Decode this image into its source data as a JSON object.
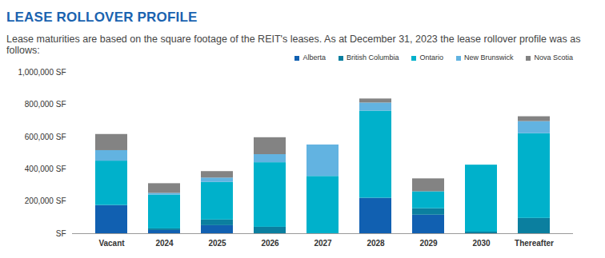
{
  "chart_data": {
    "type": "bar",
    "title": "LEASE ROLLOVER PROFILE",
    "subtitle": "Lease maturities are based on the square footage of the REIT's leases. As at December 31, 2023 the lease rollover profile was as follows:",
    "categories": [
      "Vacant",
      "2024",
      "2025",
      "2026",
      "2027",
      "2028",
      "2029",
      "2030",
      "Thereafter"
    ],
    "series": [
      {
        "name": "Alberta",
        "color": "#1160b1",
        "values": [
          175000,
          20000,
          50000,
          0,
          0,
          220000,
          115000,
          0,
          0
        ]
      },
      {
        "name": "British Columbia",
        "color": "#0b7f9f",
        "values": [
          0,
          10000,
          35000,
          40000,
          0,
          0,
          40000,
          10000,
          95000
        ]
      },
      {
        "name": "Ontario",
        "color": "#00b1cb",
        "values": [
          275000,
          210000,
          233000,
          400000,
          355000,
          540000,
          105000,
          415000,
          525000
        ]
      },
      {
        "name": "New Brunswick",
        "color": "#62b3e1",
        "values": [
          65000,
          10000,
          27000,
          50000,
          195000,
          50000,
          0,
          0,
          75000
        ]
      },
      {
        "name": "Nova Scotia",
        "color": "#838383",
        "values": [
          100000,
          60000,
          40000,
          105000,
          0,
          25000,
          80000,
          0,
          30000
        ]
      }
    ],
    "ylim": [
      0,
      1000000
    ],
    "yticks": [
      {
        "value": 0,
        "label": "SF"
      },
      {
        "value": 200000,
        "label": "200,000 SF"
      },
      {
        "value": 400000,
        "label": "400,000 SF"
      },
      {
        "value": 600000,
        "label": "600,000 SF"
      },
      {
        "value": 800000,
        "label": "800,000 SF"
      },
      {
        "value": 1000000,
        "label": "1,000,000 SF"
      }
    ],
    "stacked": true,
    "grid": false,
    "legend": "top-right"
  }
}
